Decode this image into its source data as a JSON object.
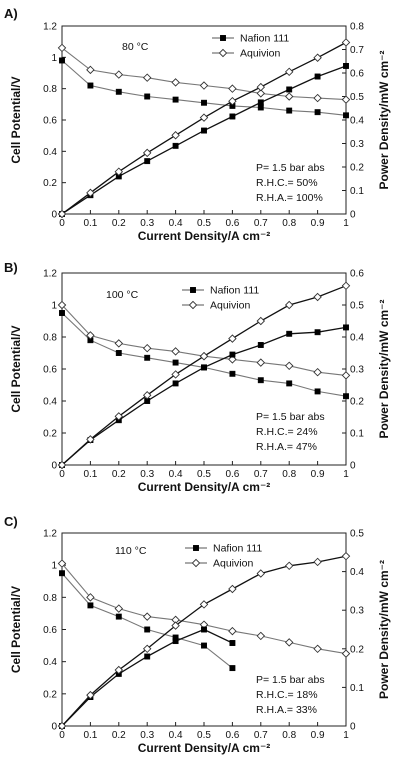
{
  "chart_data": [
    {
      "panel_label": "A)",
      "type": "line",
      "temperature_label": "80 °C",
      "xlabel": "Current Density/A cm⁻²",
      "ylabel_left": "Cell Potential/V",
      "ylabel_right": "Power Density/mW cm⁻²",
      "x_ticks": [
        "0",
        "0.1",
        "0.2",
        "0.3",
        "0.4",
        "0.5",
        "0.6",
        "0.7",
        "0.8",
        "0.9",
        "1"
      ],
      "y_left_ticks": [
        "0",
        "0.2",
        "0.4",
        "0.6",
        "0.8",
        "1",
        "1.2"
      ],
      "y_right_ticks": [
        "0",
        "0.1",
        "0.2",
        "0.3",
        "0.4",
        "0.5",
        "0.6",
        "0.7",
        "0.8"
      ],
      "xlim": [
        0,
        1
      ],
      "ylim_left": [
        0,
        1.2
      ],
      "ylim_right": [
        0,
        0.8
      ],
      "legend": [
        "Nafion 111",
        "Aquivion"
      ],
      "annotations": [
        "P= 1.5 bar abs",
        "R.H.C.= 50%",
        "R.H.A.= 100%"
      ],
      "series": [
        {
          "name": "Nafion 111",
          "axis": "left",
          "marker": "square",
          "x": [
            0,
            0.1,
            0.2,
            0.3,
            0.4,
            0.5,
            0.6,
            0.7,
            0.8,
            0.9,
            1.0
          ],
          "y": [
            0.98,
            0.82,
            0.78,
            0.75,
            0.73,
            0.71,
            0.69,
            0.68,
            0.66,
            0.65,
            0.63
          ]
        },
        {
          "name": "Aquivion",
          "axis": "left",
          "marker": "diamond",
          "x": [
            0,
            0.1,
            0.2,
            0.3,
            0.4,
            0.5,
            0.6,
            0.7,
            0.8,
            0.9,
            1.0
          ],
          "y": [
            1.06,
            0.92,
            0.89,
            0.87,
            0.84,
            0.82,
            0.8,
            0.77,
            0.75,
            0.74,
            0.73
          ]
        },
        {
          "name": "Nafion 111",
          "axis": "right",
          "marker": "square",
          "x": [
            0,
            0.1,
            0.2,
            0.3,
            0.4,
            0.5,
            0.6,
            0.7,
            0.8,
            0.9,
            1.0
          ],
          "y": [
            0,
            0.08,
            0.16,
            0.225,
            0.29,
            0.355,
            0.415,
            0.475,
            0.53,
            0.585,
            0.63
          ]
        },
        {
          "name": "Aquivion",
          "axis": "right",
          "marker": "diamond",
          "x": [
            0,
            0.1,
            0.2,
            0.3,
            0.4,
            0.5,
            0.6,
            0.7,
            0.8,
            0.9,
            1.0
          ],
          "y": [
            0,
            0.09,
            0.18,
            0.26,
            0.335,
            0.41,
            0.48,
            0.54,
            0.605,
            0.665,
            0.73
          ]
        }
      ]
    },
    {
      "panel_label": "B)",
      "type": "line",
      "temperature_label": "100 °C",
      "xlabel": "Current Density/A cm⁻²",
      "ylabel_left": "Cell Potential/V",
      "ylabel_right": "Power Density/mW cm⁻²",
      "x_ticks": [
        "0",
        "0.1",
        "0.2",
        "0.3",
        "0.4",
        "0.5",
        "0.6",
        "0.7",
        "0.8",
        "0.9",
        "1"
      ],
      "y_left_ticks": [
        "0",
        "0.2",
        "0.4",
        "0.6",
        "0.8",
        "1",
        "1.2"
      ],
      "y_right_ticks": [
        "0",
        "0.1",
        "0.2",
        "0.3",
        "0.4",
        "0.5",
        "0.6"
      ],
      "xlim": [
        0,
        1
      ],
      "ylim_left": [
        0,
        1.2
      ],
      "ylim_right": [
        0,
        0.6
      ],
      "legend": [
        "Nafion 111",
        "Aquivion"
      ],
      "annotations": [
        "P= 1.5 bar abs",
        "R.H.C.= 24%",
        "R.H.A.= 47%"
      ],
      "series": [
        {
          "name": "Nafion 111",
          "axis": "left",
          "marker": "square",
          "x": [
            0,
            0.1,
            0.2,
            0.3,
            0.4,
            0.5,
            0.6,
            0.7,
            0.8,
            0.9,
            1.0
          ],
          "y": [
            0.95,
            0.78,
            0.7,
            0.67,
            0.64,
            0.61,
            0.57,
            0.53,
            0.51,
            0.46,
            0.43
          ]
        },
        {
          "name": "Aquivion",
          "axis": "left",
          "marker": "diamond",
          "x": [
            0,
            0.1,
            0.2,
            0.3,
            0.4,
            0.5,
            0.6,
            0.7,
            0.8,
            0.9,
            1.0
          ],
          "y": [
            1.0,
            0.81,
            0.76,
            0.73,
            0.71,
            0.68,
            0.66,
            0.64,
            0.62,
            0.58,
            0.56
          ]
        },
        {
          "name": "Nafion 111",
          "axis": "right",
          "marker": "square",
          "x": [
            0,
            0.1,
            0.2,
            0.3,
            0.4,
            0.5,
            0.6,
            0.7,
            0.8,
            0.9,
            1.0
          ],
          "y": [
            0,
            0.078,
            0.14,
            0.2,
            0.255,
            0.305,
            0.345,
            0.375,
            0.41,
            0.415,
            0.43
          ]
        },
        {
          "name": "Aquivion",
          "axis": "right",
          "marker": "diamond",
          "x": [
            0,
            0.1,
            0.2,
            0.3,
            0.4,
            0.5,
            0.6,
            0.7,
            0.8,
            0.9,
            1.0
          ],
          "y": [
            0,
            0.08,
            0.152,
            0.218,
            0.283,
            0.34,
            0.395,
            0.45,
            0.5,
            0.525,
            0.56
          ]
        }
      ]
    },
    {
      "panel_label": "C)",
      "type": "line",
      "temperature_label": "110 °C",
      "xlabel": "Current Density/A cm⁻²",
      "ylabel_left": "Cell Potential/V",
      "ylabel_right": "Power Density/mW cm⁻²",
      "x_ticks": [
        "0",
        "0.1",
        "0.2",
        "0.3",
        "0.4",
        "0.5",
        "0.6",
        "0.7",
        "0.8",
        "0.9",
        "1"
      ],
      "y_left_ticks": [
        "0",
        "0.2",
        "0.4",
        "0.6",
        "0.8",
        "1",
        "1.2"
      ],
      "y_right_ticks": [
        "0",
        "0.1",
        "0.2",
        "0.3",
        "0.4",
        "0.5"
      ],
      "xlim": [
        0,
        1
      ],
      "ylim_left": [
        0,
        1.2
      ],
      "ylim_right": [
        0,
        0.5
      ],
      "legend": [
        "Nafion 111",
        "Aquivion"
      ],
      "annotations": [
        "P= 1.5 bar abs",
        "R.H.C.= 18%",
        "R.H.A.= 33%"
      ],
      "series": [
        {
          "name": "Nafion 111",
          "axis": "left",
          "marker": "square",
          "x": [
            0,
            0.1,
            0.2,
            0.3,
            0.4,
            0.5,
            0.6
          ],
          "y": [
            0.95,
            0.75,
            0.68,
            0.6,
            0.55,
            0.5,
            0.36
          ]
        },
        {
          "name": "Aquivion",
          "axis": "left",
          "marker": "diamond",
          "x": [
            0,
            0.1,
            0.2,
            0.3,
            0.4,
            0.5,
            0.6,
            0.7,
            0.8,
            0.9,
            1.0
          ],
          "y": [
            1.01,
            0.8,
            0.73,
            0.68,
            0.66,
            0.63,
            0.59,
            0.56,
            0.52,
            0.48,
            0.45
          ]
        },
        {
          "name": "Nafion 111",
          "axis": "right",
          "marker": "square",
          "x": [
            0,
            0.1,
            0.2,
            0.3,
            0.4,
            0.5,
            0.6
          ],
          "y": [
            0,
            0.075,
            0.135,
            0.18,
            0.22,
            0.25,
            0.215
          ]
        },
        {
          "name": "Aquivion",
          "axis": "right",
          "marker": "diamond",
          "x": [
            0,
            0.1,
            0.2,
            0.3,
            0.4,
            0.5,
            0.6,
            0.7,
            0.8,
            0.9,
            1.0
          ],
          "y": [
            0,
            0.08,
            0.145,
            0.2,
            0.26,
            0.315,
            0.355,
            0.395,
            0.415,
            0.425,
            0.44
          ]
        }
      ]
    }
  ]
}
